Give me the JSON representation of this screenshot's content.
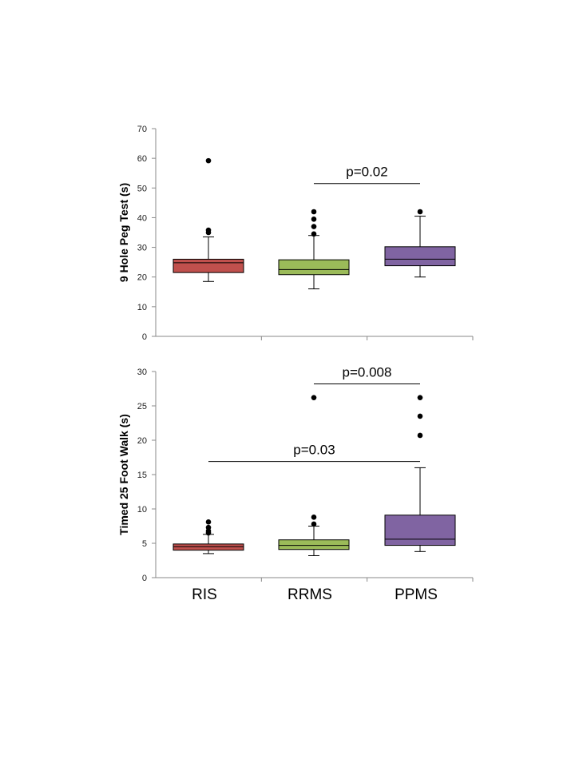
{
  "chart_data": [
    {
      "type": "box",
      "title": "",
      "ylabel": "9 Hole Peg Test (s)",
      "ylim": [
        0,
        70
      ],
      "yticks": [
        0,
        10,
        20,
        30,
        40,
        50,
        60,
        70
      ],
      "categories": [
        "RIS",
        "RRMS",
        "PPMS"
      ],
      "boxes": [
        {
          "category": "RIS",
          "color": "#C0504D",
          "whisker_low": 18.5,
          "q1": 21.5,
          "median": 24.8,
          "q3": 26.0,
          "whisker_high": 33.5,
          "outliers": [
            35.0,
            35.8,
            59.2
          ]
        },
        {
          "category": "RRMS",
          "color": "#9BBB59",
          "whisker_low": 16.0,
          "q1": 20.8,
          "median": 22.5,
          "q3": 25.8,
          "whisker_high": 34.0,
          "outliers": [
            34.5,
            37.0,
            39.5,
            42.0
          ]
        },
        {
          "category": "PPMS",
          "color": "#8064A2",
          "whisker_low": 20.0,
          "q1": 23.8,
          "median": 26.0,
          "q3": 30.2,
          "whisker_high": 40.5,
          "outliers": [
            42.0
          ]
        }
      ],
      "annotations": [
        {
          "text": "p=0.02",
          "from": "RRMS",
          "to": "PPMS",
          "y": 51.5
        }
      ]
    },
    {
      "type": "box",
      "title": "",
      "ylabel": "Timed 25 Foot Walk (s)",
      "ylim": [
        0,
        30
      ],
      "yticks": [
        0,
        5,
        10,
        15,
        20,
        25,
        30
      ],
      "categories": [
        "RIS",
        "RRMS",
        "PPMS"
      ],
      "boxes": [
        {
          "category": "RIS",
          "color": "#C0504D",
          "whisker_low": 3.5,
          "q1": 4.0,
          "median": 4.5,
          "q3": 4.9,
          "whisker_high": 6.3,
          "outliers": [
            6.5,
            6.8,
            7.3,
            8.1
          ]
        },
        {
          "category": "RRMS",
          "color": "#9BBB59",
          "whisker_low": 3.2,
          "q1": 4.1,
          "median": 4.7,
          "q3": 5.5,
          "whisker_high": 7.5,
          "outliers": [
            7.8,
            8.8,
            26.2
          ]
        },
        {
          "category": "PPMS",
          "color": "#8064A2",
          "whisker_low": 3.8,
          "q1": 4.7,
          "median": 5.6,
          "q3": 9.1,
          "whisker_high": 16.0,
          "outliers": [
            20.7,
            23.5,
            26.2
          ]
        }
      ],
      "annotations": [
        {
          "text": "p=0.008",
          "from": "RRMS",
          "to": "PPMS",
          "y": 28.2
        },
        {
          "text": "p=0.03",
          "from": "RIS",
          "to": "PPMS",
          "y": 16.9
        }
      ]
    }
  ]
}
